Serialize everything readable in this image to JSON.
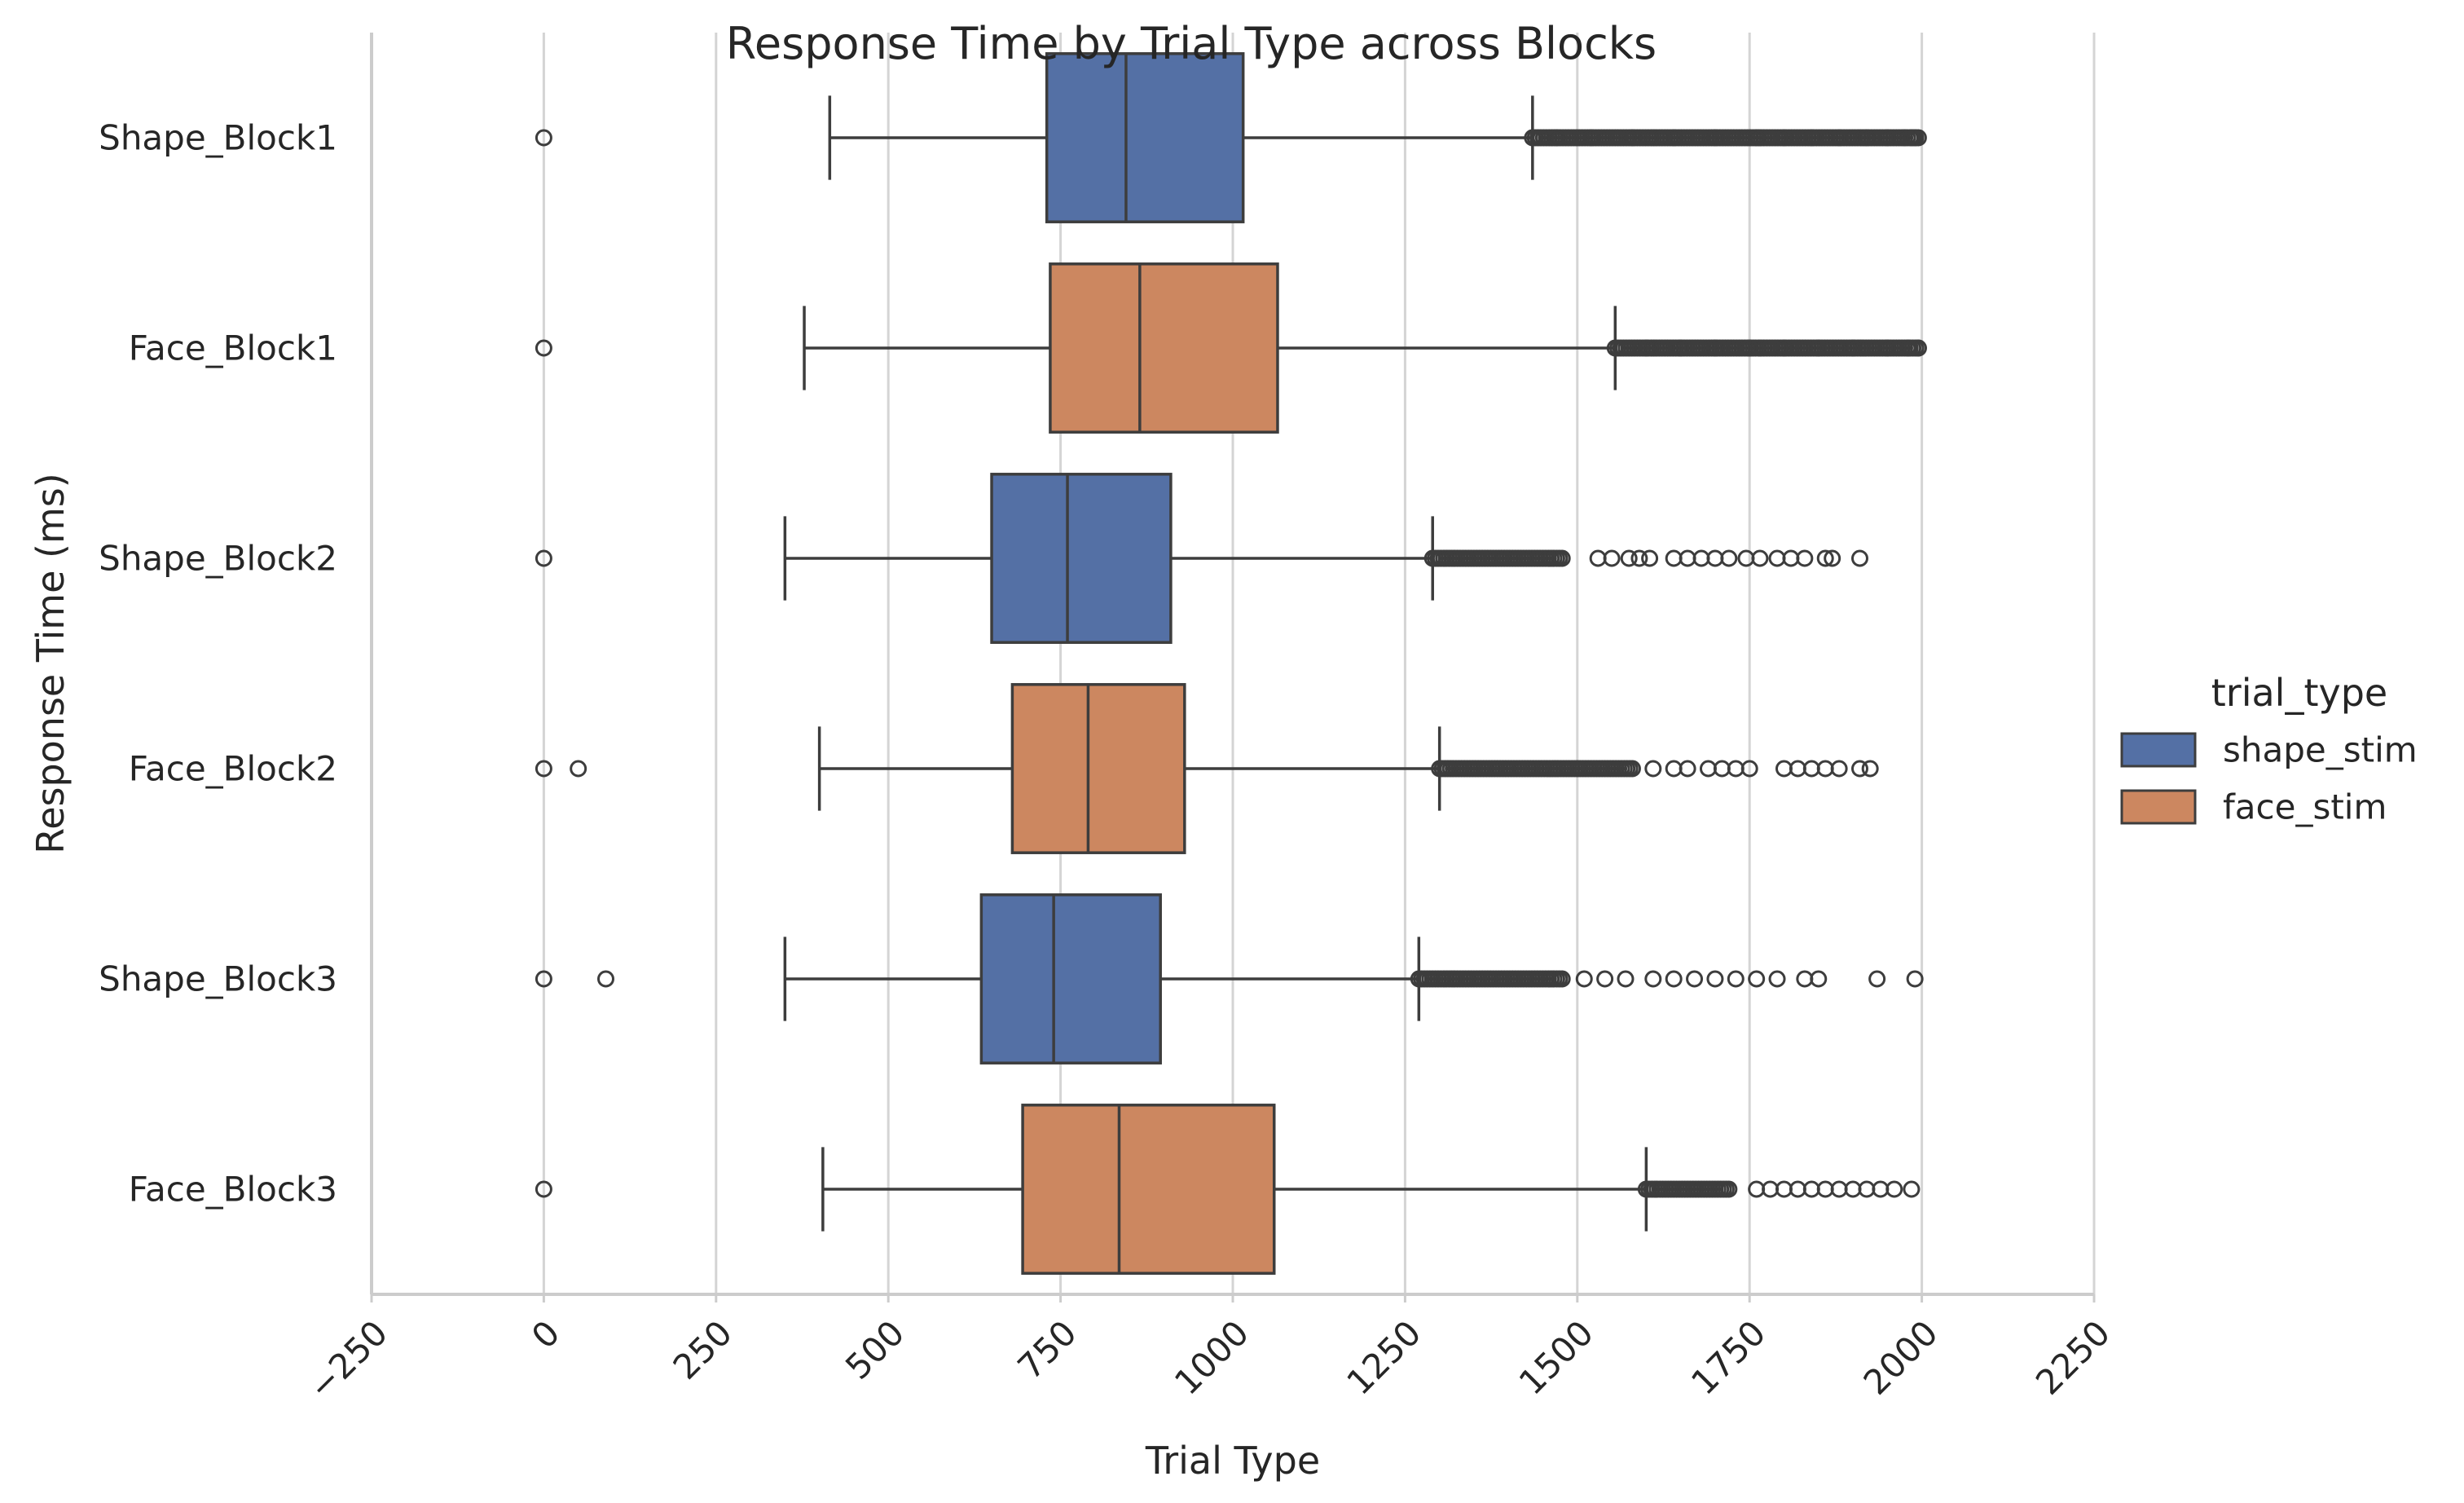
{
  "chart_data": {
    "type": "box",
    "orientation": "horizontal",
    "title": "Response Time by Trial Type across Blocks",
    "xlabel": "Trial Type",
    "ylabel": "Response Time (ms)",
    "xlim": [
      -250,
      2250
    ],
    "xticks": [
      -250,
      0,
      250,
      500,
      750,
      1000,
      1250,
      1500,
      1750,
      2000,
      2250
    ],
    "xtick_labels": [
      "−250",
      "0",
      "250",
      "500",
      "750",
      "1000",
      "1250",
      "1500",
      "1750",
      "2000",
      "2250"
    ],
    "grid": "vertical",
    "legend": {
      "title": "trial_type",
      "placement": "right",
      "entries": [
        {
          "label": "shape_stim",
          "color": "#5470a5"
        },
        {
          "label": "face_stim",
          "color": "#cc8760"
        }
      ]
    },
    "categories": [
      "Shape_Block1",
      "Face_Block1",
      "Shape_Block2",
      "Face_Block2",
      "Shape_Block3",
      "Face_Block3"
    ],
    "boxes": [
      {
        "category": "Shape_Block1",
        "hue": "shape_stim",
        "whisker_low": 415,
        "q1": 730,
        "median": 845,
        "q3": 1015,
        "whisker_high": 1435,
        "outliers": {
          "isolated": [
            0
          ],
          "dense_from": 1435,
          "dense_to": 1995,
          "sparse": [
            1470,
            1520,
            1580,
            1640,
            1700,
            1760,
            1800,
            1840,
            1880,
            1920,
            1950,
            1975,
            1985,
            1990
          ]
        }
      },
      {
        "category": "Face_Block1",
        "hue": "face_stim",
        "whisker_low": 378,
        "q1": 735,
        "median": 865,
        "q3": 1065,
        "whisker_high": 1555,
        "outliers": {
          "isolated": [
            0
          ],
          "dense_from": 1555,
          "dense_to": 1998,
          "sparse": [
            1600,
            1650,
            1700,
            1750,
            1800,
            1850,
            1900,
            1950,
            1980,
            1995
          ]
        }
      },
      {
        "category": "Shape_Block2",
        "hue": "shape_stim",
        "whisker_low": 350,
        "q1": 650,
        "median": 760,
        "q3": 910,
        "whisker_high": 1290,
        "outliers": {
          "isolated": [
            0
          ],
          "dense_from": 1290,
          "dense_to": 1480,
          "sparse": [
            1530,
            1550,
            1575,
            1590,
            1605,
            1640,
            1660,
            1680,
            1700,
            1720,
            1745,
            1765,
            1790,
            1810,
            1830,
            1860,
            1870,
            1910
          ]
        }
      },
      {
        "category": "Face_Block2",
        "hue": "face_stim",
        "whisker_low": 400,
        "q1": 680,
        "median": 790,
        "q3": 930,
        "whisker_high": 1300,
        "outliers": {
          "isolated": [
            0,
            50
          ],
          "dense_from": 1300,
          "dense_to": 1580,
          "sparse": [
            1610,
            1640,
            1660,
            1690,
            1710,
            1730,
            1750,
            1800,
            1820,
            1840,
            1860,
            1880,
            1910,
            1925
          ]
        }
      },
      {
        "category": "Shape_Block3",
        "hue": "shape_stim",
        "whisker_low": 350,
        "q1": 635,
        "median": 740,
        "q3": 895,
        "whisker_high": 1270,
        "outliers": {
          "isolated": [
            0,
            90
          ],
          "dense_from": 1270,
          "dense_to": 1480,
          "sparse": [
            1510,
            1540,
            1570,
            1610,
            1640,
            1670,
            1700,
            1730,
            1760,
            1790,
            1830,
            1850,
            1935,
            1990
          ]
        }
      },
      {
        "category": "Face_Block3",
        "hue": "face_stim",
        "whisker_low": 405,
        "q1": 695,
        "median": 835,
        "q3": 1060,
        "whisker_high": 1600,
        "outliers": {
          "isolated": [
            0
          ],
          "dense_from": 1600,
          "dense_to": 1720,
          "sparse": [
            1760,
            1780,
            1800,
            1820,
            1840,
            1860,
            1880,
            1900,
            1920,
            1940,
            1960,
            1985
          ]
        }
      }
    ]
  }
}
